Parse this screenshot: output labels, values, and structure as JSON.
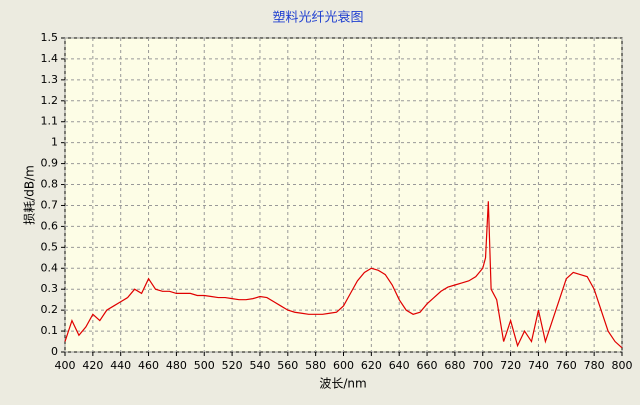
{
  "chart_data": {
    "type": "line",
    "title": "塑料光纤光衰图",
    "x_label": "波长/nm",
    "y_label": "损耗/dB/m",
    "x": [
      400,
      405,
      410,
      415,
      420,
      425,
      430,
      435,
      440,
      445,
      450,
      455,
      460,
      465,
      470,
      475,
      480,
      485,
      490,
      495,
      500,
      505,
      510,
      515,
      520,
      525,
      530,
      535,
      540,
      545,
      550,
      555,
      560,
      565,
      570,
      575,
      580,
      585,
      590,
      595,
      600,
      605,
      610,
      615,
      620,
      625,
      630,
      635,
      640,
      645,
      650,
      655,
      660,
      665,
      670,
      675,
      680,
      685,
      690,
      695,
      700,
      702,
      704,
      706,
      710,
      715,
      720,
      725,
      730,
      735,
      740,
      745,
      750,
      755,
      760,
      765,
      770,
      775,
      780,
      785,
      790,
      795,
      800
    ],
    "values": [
      0.05,
      0.15,
      0.08,
      0.12,
      0.18,
      0.15,
      0.2,
      0.22,
      0.24,
      0.26,
      0.3,
      0.28,
      0.35,
      0.3,
      0.29,
      0.29,
      0.28,
      0.28,
      0.28,
      0.27,
      0.27,
      0.265,
      0.26,
      0.26,
      0.255,
      0.25,
      0.25,
      0.255,
      0.265,
      0.26,
      0.24,
      0.22,
      0.2,
      0.19,
      0.185,
      0.18,
      0.18,
      0.18,
      0.185,
      0.19,
      0.22,
      0.28,
      0.34,
      0.38,
      0.4,
      0.39,
      0.37,
      0.32,
      0.25,
      0.2,
      0.18,
      0.19,
      0.23,
      0.26,
      0.29,
      0.31,
      0.32,
      0.33,
      0.34,
      0.36,
      0.4,
      0.45,
      0.72,
      0.3,
      0.25,
      0.05,
      0.15,
      0.03,
      0.1,
      0.05,
      0.2,
      0.05,
      0.15,
      0.25,
      0.35,
      0.38,
      0.37,
      0.36,
      0.3,
      0.2,
      0.1,
      0.05,
      0.02
    ],
    "color": "#e00000",
    "xlim": [
      400,
      800
    ],
    "xticks": [
      400,
      420,
      440,
      460,
      480,
      500,
      520,
      540,
      560,
      580,
      600,
      620,
      640,
      660,
      680,
      700,
      720,
      740,
      760,
      780,
      800
    ],
    "ylim": [
      0,
      1.5
    ],
    "yticks": [
      0,
      0.1,
      0.2,
      0.3,
      0.4,
      0.5,
      0.6,
      0.7,
      0.8,
      0.9,
      1,
      1.1,
      1.2,
      1.3,
      1.4,
      1.5
    ],
    "grid": true
  }
}
